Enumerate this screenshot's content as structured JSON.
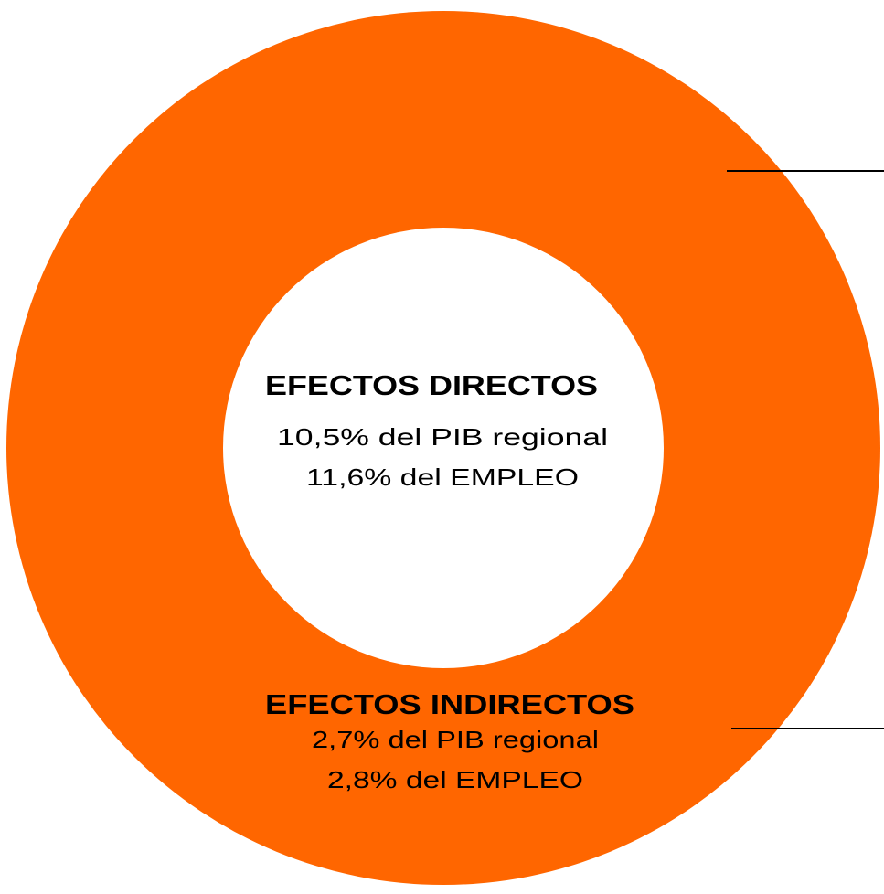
{
  "center": {
    "title": "EFECTOS DIRECTOS",
    "lines": [
      "10,5% del PIB regional",
      "11,6% del EMPLEO"
    ]
  },
  "ring": {
    "title": "EFECTOS INDIRECTOS",
    "lines": [
      "2,7% del PIB regional",
      "2,8% del EMPLEO"
    ]
  }
}
